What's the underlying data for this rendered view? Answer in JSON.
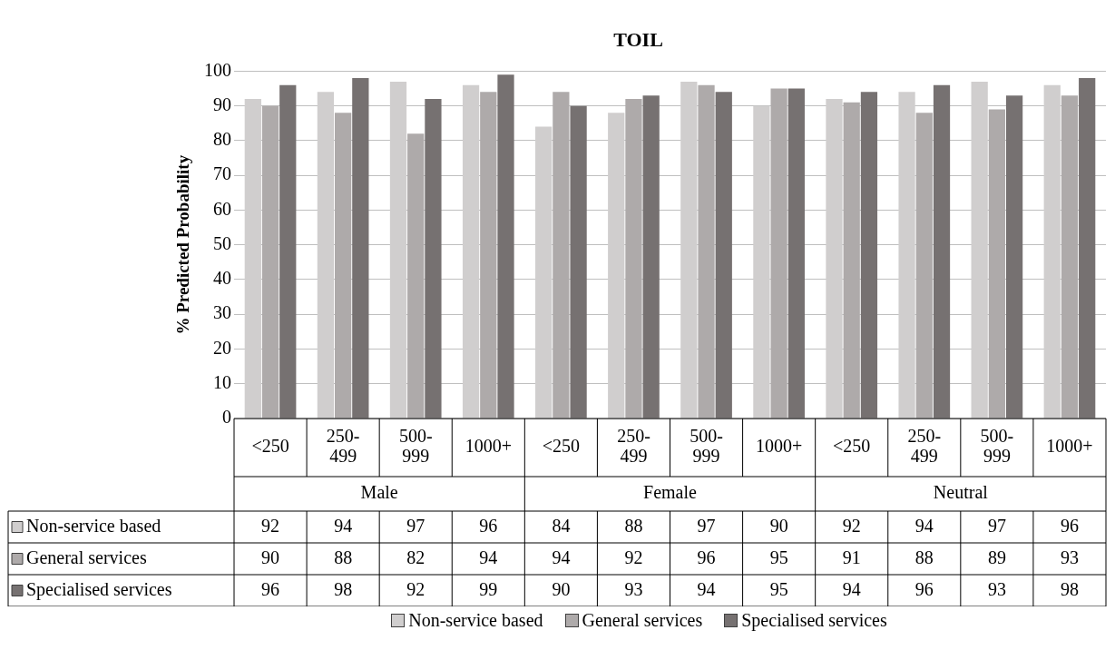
{
  "chart_data": {
    "type": "bar",
    "title": "TOIL",
    "ylabel": "% Predicted Probability",
    "categories": [
      "<250",
      "250-499",
      "500-999",
      "1000+",
      "<250",
      "250-499",
      "500-999",
      "1000+",
      "<250",
      "250-499",
      "500-999",
      "1000+"
    ],
    "annotations": [
      "Male",
      "Female",
      "Neutral"
    ],
    "series": [
      {
        "name": "Non-service based",
        "color": "#d0cece",
        "values": [
          92,
          94,
          97,
          96,
          84,
          88,
          97,
          90,
          92,
          94,
          97,
          96
        ]
      },
      {
        "name": "General services",
        "color": "#aeaaaa",
        "values": [
          90,
          88,
          82,
          94,
          94,
          92,
          96,
          95,
          91,
          88,
          89,
          93
        ]
      },
      {
        "name": "Specialised services",
        "color": "#767171",
        "values": [
          96,
          98,
          92,
          99,
          90,
          93,
          94,
          95,
          94,
          96,
          93,
          98
        ]
      }
    ],
    "ylim": [
      0,
      100
    ],
    "yticks": [
      0,
      10,
      20,
      30,
      40,
      50,
      60,
      70,
      80,
      90,
      100
    ],
    "grid": "y",
    "legend": "bottom",
    "data_labels": true
  }
}
